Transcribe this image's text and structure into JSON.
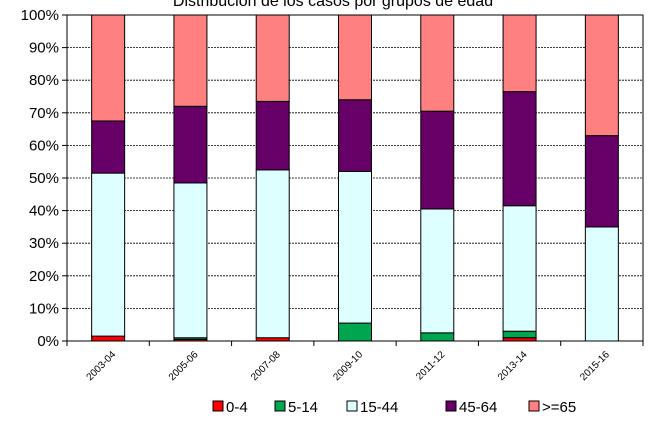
{
  "chart_data": {
    "type": "bar",
    "stacked": "percent",
    "title": "Distribución de los casos por grupos de edad",
    "categories": [
      "2003-04",
      "2005-06",
      "2007-08",
      "2009-10",
      "2011-12",
      "2013-14",
      "2015-16"
    ],
    "series": [
      {
        "name": "0-4",
        "color": "#FF0000",
        "values": [
          1.5,
          0.5,
          1.0,
          0.0,
          0.0,
          1.0,
          0.0
        ]
      },
      {
        "name": "5-14",
        "color": "#00A550",
        "values": [
          0.0,
          0.5,
          0.0,
          5.5,
          2.5,
          2.0,
          0.0
        ]
      },
      {
        "name": "15-44",
        "color": "#DDFFFF",
        "values": [
          50.0,
          47.5,
          51.5,
          46.5,
          38.0,
          38.5,
          35.0
        ]
      },
      {
        "name": "45-64",
        "color": "#660066",
        "values": [
          16.0,
          23.5,
          21.0,
          22.0,
          30.0,
          35.0,
          28.0
        ]
      },
      {
        "name": ">=65",
        "color": "#FF8080",
        "values": [
          32.5,
          28.0,
          26.5,
          26.0,
          29.5,
          23.5,
          37.0
        ]
      }
    ],
    "ylim": [
      0,
      100
    ],
    "yticks": [
      "0%",
      "10%",
      "20%",
      "30%",
      "40%",
      "50%",
      "60%",
      "70%",
      "80%",
      "90%",
      "100%"
    ],
    "grid": true,
    "legend_position": "bottom"
  }
}
